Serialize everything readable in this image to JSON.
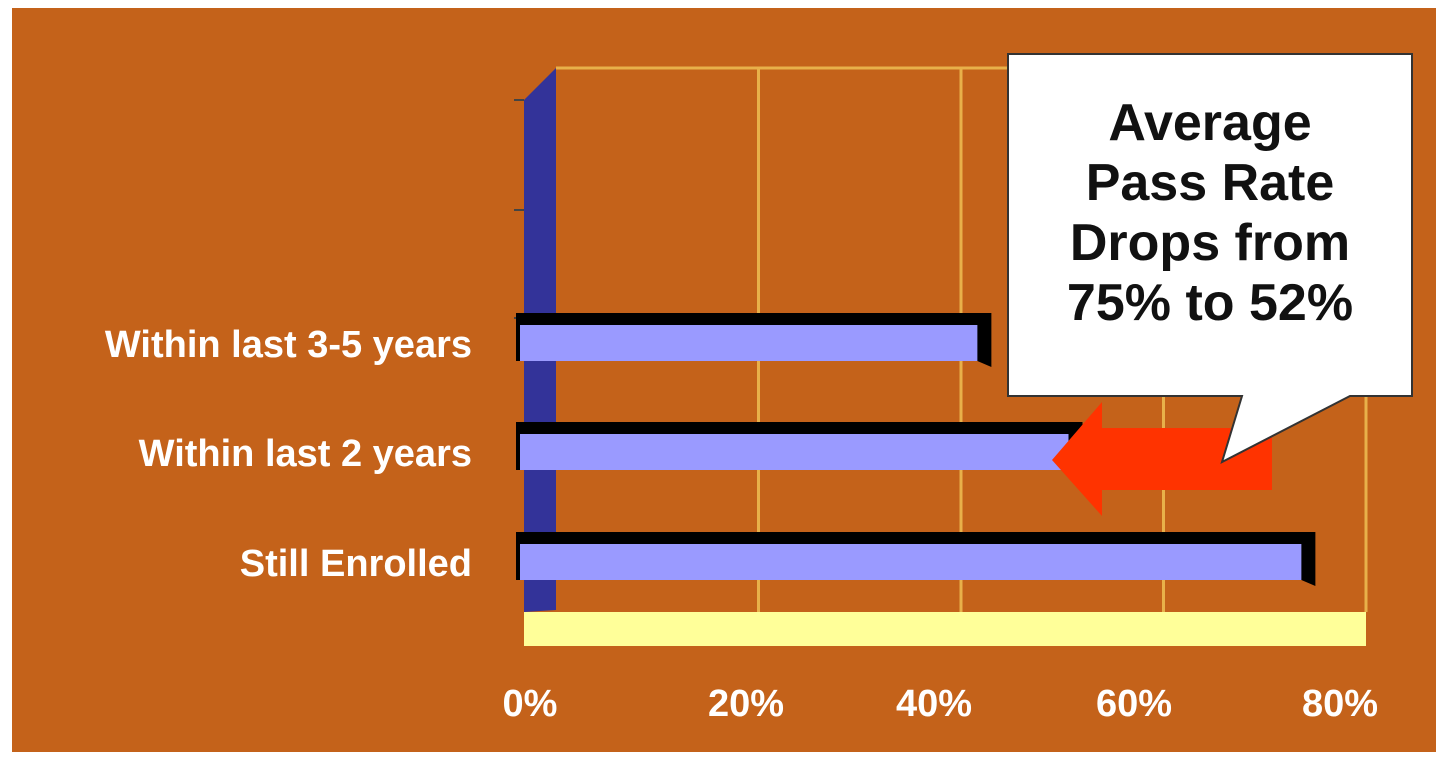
{
  "colors": {
    "background": "#c4621a",
    "bar_fill": "#9a9aff",
    "bar_shadow": "#000000",
    "floor": "#ffff99",
    "left_wall": "#333399",
    "gridline": "#e8b04a",
    "arrow": "#ff3300",
    "callout_fill": "#ffffff",
    "text": "#ffffff"
  },
  "callout": {
    "lines": [
      "Average",
      "Pass Rate",
      "Drops from",
      "75% to 52%"
    ]
  },
  "chart_data": {
    "type": "bar",
    "orientation": "horizontal",
    "categories": [
      "Within last 3-5 years",
      "Within last 2 years",
      "Still Enrolled"
    ],
    "values": [
      43,
      52,
      75
    ],
    "value_unit": "%",
    "xlim": [
      0,
      80
    ],
    "x_ticks": [
      "0%",
      "20%",
      "40%",
      "60%",
      "80%"
    ],
    "x_tick_values": [
      0,
      20,
      40,
      60,
      80
    ],
    "grid": true,
    "legend": "none",
    "annotation_target": "Within last 2 years"
  }
}
